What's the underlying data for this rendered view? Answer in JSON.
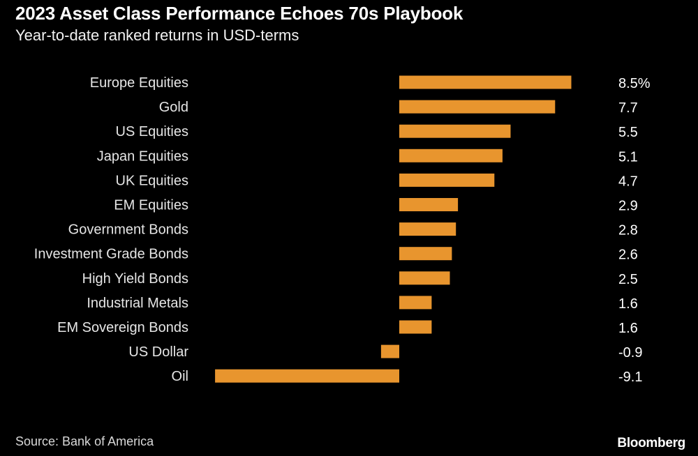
{
  "chart_data": {
    "type": "bar",
    "orientation": "horizontal",
    "title": "2023 Asset Class Performance Echoes 70s Playbook",
    "subtitle": "Year-to-date ranked returns in USD-terms",
    "categories": [
      "Europe Equities",
      "Gold",
      "US Equities",
      "Japan Equities",
      "UK Equities",
      "EM Equities",
      "Government Bonds",
      "Investment Grade Bonds",
      "High Yield Bonds",
      "Industrial Metals",
      "EM Sovereign Bonds",
      "US Dollar",
      "Oil"
    ],
    "values": [
      8.5,
      7.7,
      5.5,
      5.1,
      4.7,
      2.9,
      2.8,
      2.6,
      2.5,
      1.6,
      1.6,
      -0.9,
      -9.1
    ],
    "value_labels": [
      "8.5%",
      "7.7",
      "5.5",
      "5.1",
      "4.7",
      "2.9",
      "2.8",
      "2.6",
      "2.5",
      "1.6",
      "1.6",
      "-0.9",
      "-9.1"
    ],
    "xlim": [
      -9.1,
      8.5
    ],
    "xlabel": "",
    "ylabel": "",
    "grid": false,
    "legend": null,
    "bar_color": "#e8952e",
    "source": "Source: Bank of America",
    "brand": "Bloomberg"
  }
}
